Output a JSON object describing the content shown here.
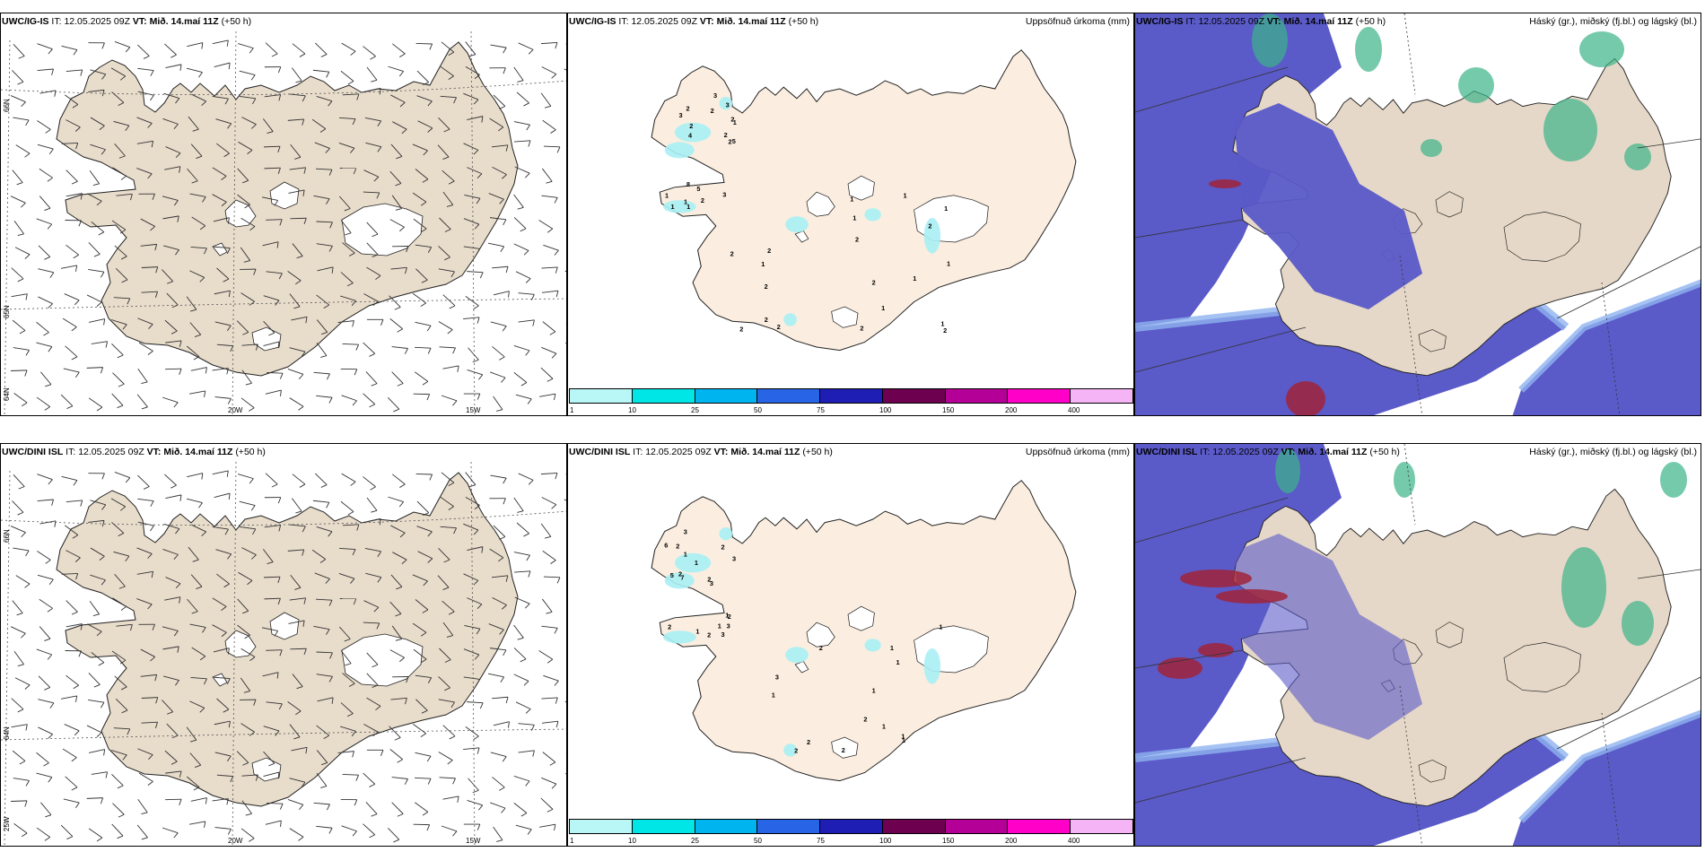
{
  "colors": {
    "land_wind": "#e8dccb",
    "land_precip": "#fbeee0",
    "land_cloud": "#e6d8c8",
    "sea": "#ffffff",
    "coast": "#222222",
    "ice": "#ffffff",
    "cloud_low": "#5a5ac8",
    "cloud_mid": "#8fb3f0",
    "cloud_high": "#3cb489",
    "cloud_red": "#a0243a"
  },
  "rows": [
    {
      "model": "UWC/IG-IS",
      "it_label": "IT:",
      "it_value": "12.05.2025 09Z",
      "vt_label": "VT:",
      "vt_value": "Mið. 14.maí 11Z",
      "lead": "(+50 h)"
    },
    {
      "model": "UWC/DINI ISL",
      "it_label": "IT:",
      "it_value": "12.05.2025 09Z",
      "vt_label": "VT:",
      "vt_value": "Mið. 14.maí 11Z",
      "lead": "(+50 h)"
    }
  ],
  "precip_title": "Uppsöfnuð úrkoma (mm)",
  "cloud_title": "Háský (gr.), miðský (fj.bl.) og lágský (bl.)",
  "map_labels": {
    "lat66": "66N",
    "lat64": "64N",
    "lat65": "65N",
    "lon20": "20W",
    "lon15": "15W",
    "lon25": "25W"
  },
  "legend": {
    "colors": [
      "#b9f6f6",
      "#00e6e6",
      "#00b4f0",
      "#2864e6",
      "#1e1eb4",
      "#6e0050",
      "#b40096",
      "#ff00c8",
      "#f5b4f5"
    ],
    "ticks": [
      "1",
      "10",
      "25",
      "50",
      "75",
      "100",
      "150",
      "200",
      "400"
    ]
  },
  "precip_values_top": [
    "2",
    "2",
    "2",
    "1",
    "2",
    "5",
    "4",
    "3",
    "2",
    "3",
    "3",
    "2",
    "3",
    "1",
    "1",
    "2",
    "1",
    "1",
    "8",
    "5",
    "1",
    "1",
    "2",
    "2",
    "2",
    "1",
    "2",
    "1",
    "2",
    "1",
    "2",
    "2",
    "1",
    "1",
    "2",
    "2",
    "1",
    "2",
    "2",
    "1"
  ],
  "precip_values_bottom": [
    "3",
    "3",
    "2",
    "2",
    "2",
    "2",
    "3",
    "1",
    "1",
    "7",
    "5",
    "6",
    "1",
    "2",
    "1",
    "1",
    "2",
    "2",
    "3",
    "3",
    "1",
    "2",
    "2",
    "1",
    "1",
    "1",
    "1",
    "3",
    "2",
    "2",
    "1",
    "1",
    "1",
    "2"
  ]
}
